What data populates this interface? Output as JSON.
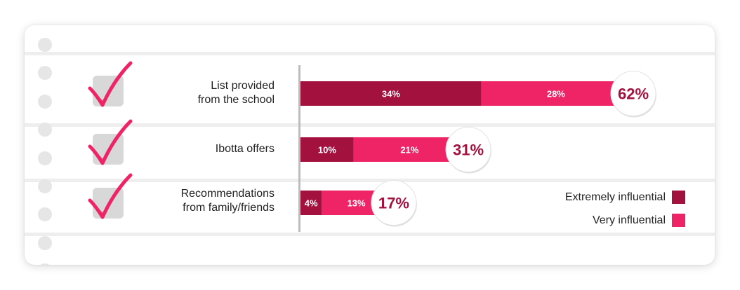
{
  "chart_data": {
    "type": "bar",
    "orientation": "horizontal",
    "stacked": true,
    "categories": [
      "List provided\nfrom the school",
      "Ibotta offers",
      "Recommendations\nfrom family/friends"
    ],
    "series": [
      {
        "name": "Extremely influential",
        "values": [
          34,
          10,
          4
        ],
        "labels": [
          "34%",
          "10%",
          "4%"
        ],
        "color": "#a3113f"
      },
      {
        "name": "Very influential",
        "values": [
          28,
          21,
          13
        ],
        "labels": [
          "28%",
          "21%",
          "13%"
        ],
        "color": "#ef2466"
      }
    ],
    "totals": [
      62,
      31,
      17
    ],
    "total_labels": [
      "62%",
      "31%",
      "17%"
    ],
    "xlim": [
      0,
      62
    ],
    "legend": "bottom-right",
    "grid": false,
    "total_label_color": "#a3113f"
  },
  "rows": [
    {
      "label": "List provided\nfrom the school",
      "check_icon": "checkmark-icon"
    },
    {
      "label": "Ibotta offers",
      "check_icon": "checkmark-icon"
    },
    {
      "label": "Recommendations\nfrom family/friends",
      "check_icon": "checkmark-icon"
    }
  ],
  "legend": {
    "extremely": "Extremely influential",
    "very": "Very influential"
  }
}
